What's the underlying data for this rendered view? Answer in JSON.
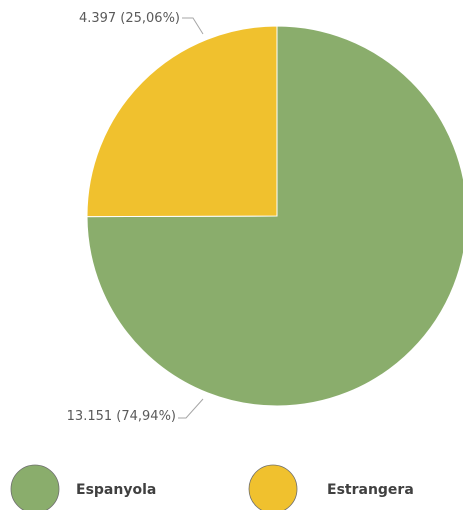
{
  "chart_data": {
    "type": "pie",
    "title": "",
    "slices": [
      {
        "label": "Espanyola",
        "value": 13151,
        "percent": 74.94,
        "data_label": "13.151 (74,94%)",
        "color": "#8aad6c"
      },
      {
        "label": "Estrangera",
        "value": 4397,
        "percent": 25.06,
        "data_label": "4.397 (25,06%)",
        "color": "#f0c12e"
      }
    ],
    "start_angle_deg": 0,
    "direction": "clockwise",
    "legend_position": "bottom"
  },
  "legend": {
    "items": [
      {
        "label": "Espanyola",
        "color": "#8aad6c"
      },
      {
        "label": "Estrangera",
        "color": "#f0c12e"
      }
    ]
  }
}
